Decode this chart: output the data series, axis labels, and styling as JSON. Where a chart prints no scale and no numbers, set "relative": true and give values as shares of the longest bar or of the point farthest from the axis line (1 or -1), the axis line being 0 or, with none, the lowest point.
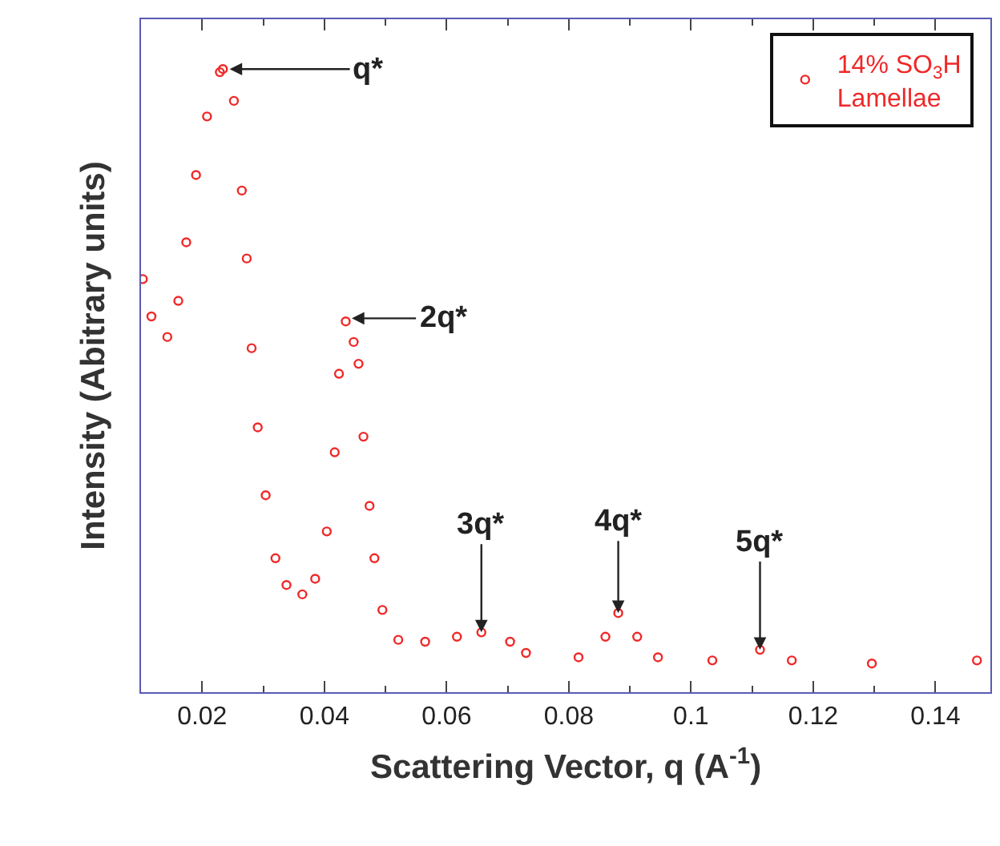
{
  "chart_data": {
    "type": "scatter",
    "relative": true,
    "xlabel": "Scattering Vector, q (A$^{-1}$)",
    "ylabel": "Intensity (Abitrary units)",
    "xlim": [
      0.01,
      0.149
    ],
    "xticks": [
      0.02,
      0.04,
      0.06,
      0.08,
      0.1,
      0.12,
      0.14
    ],
    "legend": "top right",
    "marker": "circle",
    "x": [
      0.0103,
      0.0117,
      0.0143,
      0.0161,
      0.0174,
      0.019,
      0.0208,
      0.0229,
      0.0234,
      0.0252,
      0.0265,
      0.0273,
      0.0281,
      0.0291,
      0.0304,
      0.032,
      0.0338,
      0.0364,
      0.0385,
      0.0404,
      0.0417,
      0.0424,
      0.0435,
      0.0448,
      0.0456,
      0.0464,
      0.0474,
      0.0482,
      0.0495,
      0.0521,
      0.0565,
      0.0617,
      0.0657,
      0.0704,
      0.073,
      0.0816,
      0.086,
      0.0881,
      0.0912,
      0.0946,
      0.1035,
      0.1113,
      0.1165,
      0.1296,
      0.1468
    ],
    "series": [
      {
        "name": "14% SO$_{3}$H\nLamellae",
        "color": "#f02828",
        "values": [
          0.663,
          0.603,
          0.57,
          0.628,
          0.722,
          0.83,
          0.924,
          0.995,
          1.0,
          0.949,
          0.805,
          0.696,
          0.552,
          0.425,
          0.316,
          0.215,
          0.172,
          0.157,
          0.182,
          0.258,
          0.385,
          0.511,
          0.595,
          0.562,
          0.527,
          0.41,
          0.299,
          0.215,
          0.132,
          0.084,
          0.081,
          0.089,
          0.096,
          0.081,
          0.063,
          0.056,
          0.089,
          0.127,
          0.089,
          0.056,
          0.051,
          0.068,
          0.051,
          0.046,
          0.051
        ]
      }
    ],
    "annotations": [
      {
        "text": "q*",
        "x": 0.0245,
        "y": 1.0
      },
      {
        "text": "2q*",
        "x": 0.0445,
        "y": 0.6
      },
      {
        "text": "3q*",
        "x": 0.0657,
        "y": 0.096
      },
      {
        "text": "4q*",
        "x": 0.0881,
        "y": 0.127
      },
      {
        "text": "5q*",
        "x": 0.1113,
        "y": 0.068
      }
    ]
  }
}
